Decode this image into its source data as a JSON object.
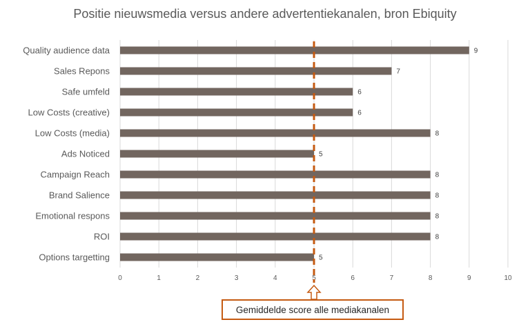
{
  "colors": {
    "bar": "#72665f",
    "average_line": "#c55a11",
    "grid": "#d9d9d9",
    "text": "#595959"
  },
  "chart_data": {
    "type": "bar",
    "orientation": "horizontal",
    "title": "Positie nieuwsmedia versus andere advertentiekanalen, bron Ebiquity",
    "categories": [
      "Quality audience data",
      "Sales Repons",
      "Safe umfeld",
      "Low Costs (creative)",
      "Low Costs (media)",
      "Ads Noticed",
      "Campaign Reach",
      "Brand Salience",
      "Emotional respons",
      "ROI",
      "Options targetting"
    ],
    "values": [
      9,
      7,
      6,
      6,
      8,
      5,
      8,
      8,
      8,
      8,
      5
    ],
    "xlim": [
      0,
      10
    ],
    "x_ticks": [
      "0",
      "1",
      "2",
      "3",
      "4",
      "5",
      "6",
      "7",
      "8",
      "9",
      "10"
    ],
    "grid": true,
    "data_labels": true,
    "average_value": 5,
    "annotation": "Gemiddelde score alle mediakanalen"
  }
}
